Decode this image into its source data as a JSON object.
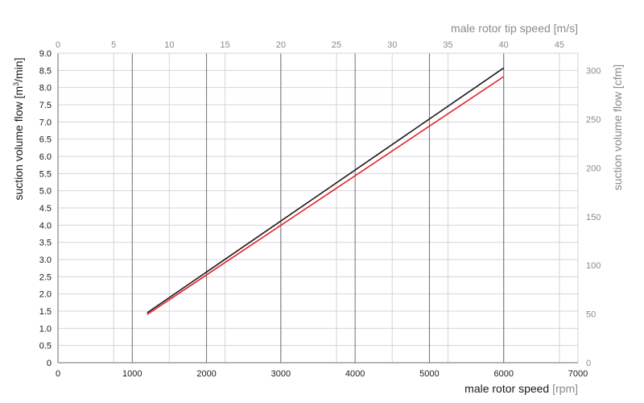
{
  "chart_data": {
    "type": "line",
    "x_axis_bottom": {
      "label": "male rotor speed",
      "unit": "[rpm]",
      "range": [
        0,
        7000
      ],
      "ticks": [
        "0",
        "1000",
        "2000",
        "3000",
        "4000",
        "5000",
        "6000",
        "7000"
      ]
    },
    "x_axis_top": {
      "label": "male rotor tip speed [m/s]",
      "range": [
        0,
        46.67
      ],
      "ticks": [
        "0",
        "5",
        "10",
        "15",
        "20",
        "25",
        "30",
        "35",
        "40",
        "45"
      ]
    },
    "y_axis_left": {
      "label_prefix": "suction volume flow [m",
      "label_sup": "3",
      "label_suffix": "/min]",
      "range": [
        0,
        9
      ],
      "ticks": [
        "0",
        "0.5",
        "1.0",
        "1.5",
        "2.0",
        "2.5",
        "3.0",
        "3.5",
        "4.0",
        "4.5",
        "5.0",
        "5.5",
        "6.0",
        "6.5",
        "7.0",
        "7.5",
        "8.0",
        "8.5",
        "9.0"
      ]
    },
    "y_axis_right": {
      "label": "suction volume flow [cfm]",
      "range": [
        0,
        317.8
      ],
      "ticks": [
        "0",
        "50",
        "100",
        "150",
        "200",
        "250",
        "300"
      ]
    },
    "grid": true,
    "series": [
      {
        "color": "#1a1a1a",
        "x": [
          1200,
          6000
        ],
        "y": [
          1.45,
          8.57
        ]
      },
      {
        "color": "#e8202a",
        "x": [
          1200,
          6000
        ],
        "y": [
          1.4,
          8.32
        ]
      }
    ]
  },
  "colors": {
    "ink": "#1a1a1a",
    "muted": "#8a8a8a",
    "grid_major": "#6e6e6e",
    "grid_minor": "#d4d4d4",
    "red": "#e8202a"
  }
}
